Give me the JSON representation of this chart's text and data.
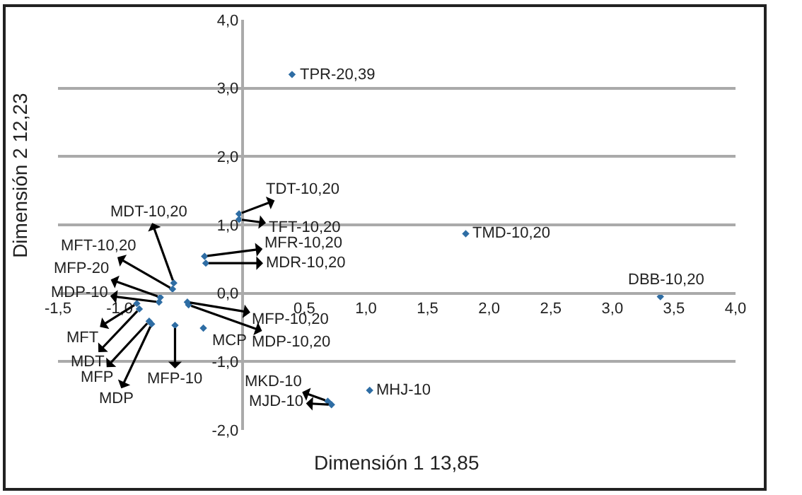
{
  "chart_data": {
    "type": "scatter",
    "xlabel": "Dimensión 1 13,85",
    "ylabel": "Dimensión 2 12,23",
    "x": [
      0.4,
      -0.03,
      -0.03,
      -0.31,
      -0.3,
      -0.56,
      -0.57,
      -0.67,
      -0.68,
      -0.45,
      -0.44,
      -0.86,
      -0.84,
      -0.76,
      -0.74,
      -0.55,
      -0.32,
      0.69,
      0.72,
      1.03,
      1.81,
      3.39
    ],
    "series": [
      {
        "color": "#2e6da4",
        "values": [
          3.2,
          1.16,
          1.08,
          0.54,
          0.44,
          0.15,
          0.06,
          -0.06,
          -0.13,
          -0.13,
          -0.17,
          -0.15,
          -0.23,
          -0.41,
          -0.45,
          -0.47,
          -0.51,
          -1.58,
          -1.63,
          -1.42,
          0.87,
          -0.05
        ]
      }
    ],
    "marker": "diamond",
    "grid": "y",
    "xlim": [
      -1.5,
      4.0
    ],
    "ylim": [
      -2.0,
      4.0
    ],
    "xticks": [
      {
        "value": -1.5,
        "label": "-1,5"
      },
      {
        "value": -1.0,
        "label": "-1,0"
      },
      {
        "value": 0.5,
        "label": "0,5"
      },
      {
        "value": 1.0,
        "label": "1,0"
      },
      {
        "value": 1.5,
        "label": "1,5"
      },
      {
        "value": 2.0,
        "label": "2,0"
      },
      {
        "value": 2.5,
        "label": "2,5"
      },
      {
        "value": 3.0,
        "label": "3,0"
      },
      {
        "value": 3.5,
        "label": "3,5"
      },
      {
        "value": 4.0,
        "label": "4,0"
      }
    ],
    "yticks": [
      {
        "value": -2.0,
        "label": "-2,0"
      },
      {
        "value": -1.0,
        "label": "-1,0"
      },
      {
        "value": 0.0,
        "label": "0,0"
      },
      {
        "value": 1.0,
        "label": "1,0"
      },
      {
        "value": 2.0,
        "label": "2,0"
      },
      {
        "value": 3.0,
        "label": "3,0"
      },
      {
        "value": 4.0,
        "label": "4,0"
      }
    ],
    "annotations": [
      {
        "text": "TPR-20,39",
        "x": 0.4,
        "y": 3.2
      },
      {
        "text": "TDT-10,20",
        "x": -0.03,
        "y": 1.16
      },
      {
        "text": "TFT-10,20",
        "x": -0.03,
        "y": 1.08
      },
      {
        "text": "MFR-10,20",
        "x": -0.31,
        "y": 0.54
      },
      {
        "text": "MDR-10,20",
        "x": -0.3,
        "y": 0.44
      },
      {
        "text": "MDT-10,20",
        "x": -0.56,
        "y": 0.15
      },
      {
        "text": "MFT-10,20",
        "x": -0.57,
        "y": 0.06
      },
      {
        "text": "MFP-20",
        "x": -0.67,
        "y": -0.06
      },
      {
        "text": "MDP-10",
        "x": -0.68,
        "y": -0.13
      },
      {
        "text": "MFP-10,20",
        "x": -0.45,
        "y": -0.13
      },
      {
        "text": "MDP-10,20",
        "x": -0.44,
        "y": -0.17
      },
      {
        "text": "MFT",
        "x": -0.86,
        "y": -0.15
      },
      {
        "text": "MDT",
        "x": -0.84,
        "y": -0.23
      },
      {
        "text": "MFP",
        "x": -0.76,
        "y": -0.41
      },
      {
        "text": "MDP",
        "x": -0.74,
        "y": -0.45
      },
      {
        "text": "MFP-10",
        "x": -0.55,
        "y": -0.47
      },
      {
        "text": "MCP",
        "x": -0.32,
        "y": -0.51
      },
      {
        "text": "MKD-10",
        "x": 0.69,
        "y": -1.58
      },
      {
        "text": "MJD-10",
        "x": 0.72,
        "y": -1.63
      },
      {
        "text": "MHJ-10",
        "x": 1.03,
        "y": -1.42
      },
      {
        "text": "TMD-10,20",
        "x": 1.81,
        "y": 0.87
      },
      {
        "text": "DBB-10,20",
        "x": 3.39,
        "y": -0.05
      }
    ]
  }
}
